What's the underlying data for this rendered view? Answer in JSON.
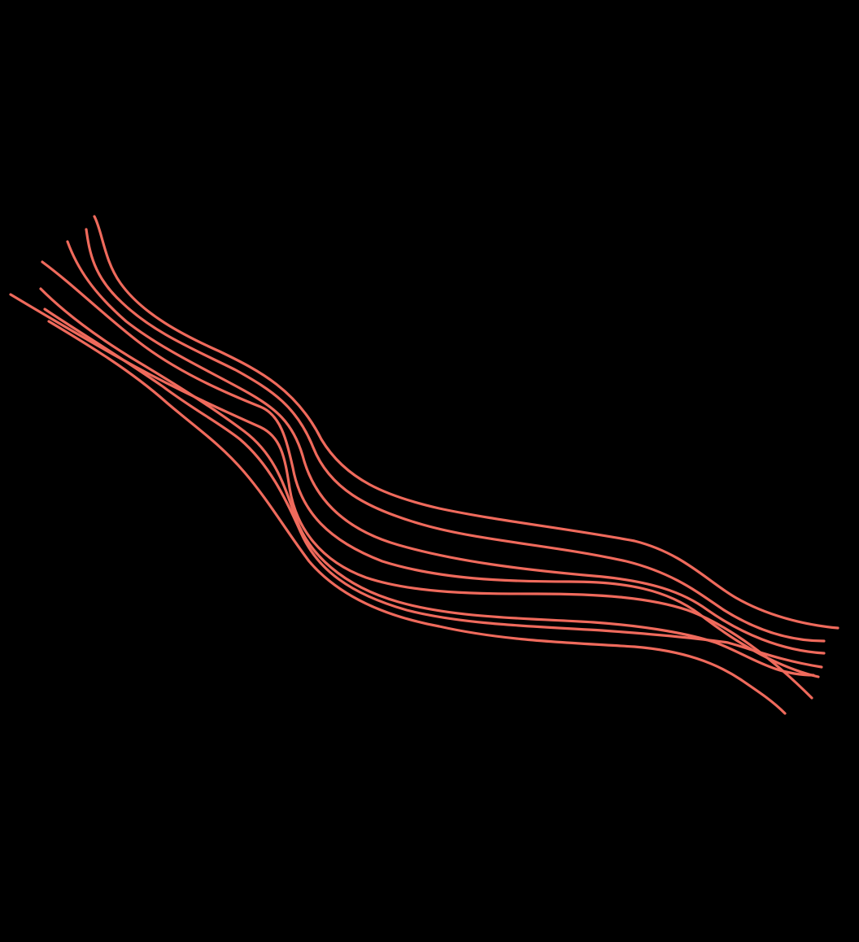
{
  "artwork": {
    "background_color": "#000000",
    "stroke_color": "#ef6a5c",
    "strand_count": 8
  }
}
